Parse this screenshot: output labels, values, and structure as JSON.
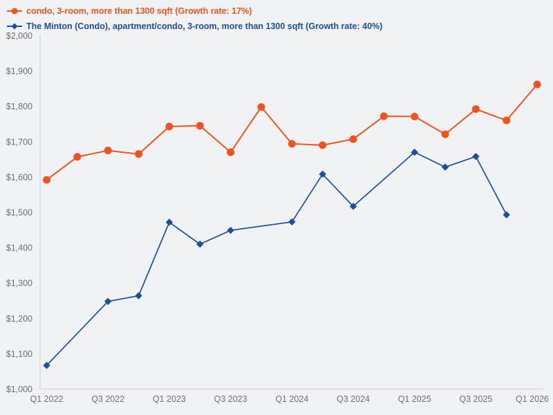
{
  "page": {
    "background_color": "#f1f2f4",
    "axis_color": "#ccd5e8",
    "tick_label_color": "#6f6f6f"
  },
  "chart_data": {
    "type": "line",
    "title": "",
    "xlabel": "",
    "ylabel": "",
    "x": [
      "Q1 2022",
      "Q2 2022",
      "Q3 2022",
      "Q4 2022",
      "Q1 2023",
      "Q2 2023",
      "Q3 2023",
      "Q4 2023",
      "Q1 2024",
      "Q2 2024",
      "Q3 2024",
      "Q4 2024",
      "Q1 2025",
      "Q2 2025",
      "Q3 2025",
      "Q4 2025",
      "Q1 2026"
    ],
    "x_tick_shown_every": 2,
    "x_tick_labels_shown": [
      "Q1 2022",
      "Q3 2022",
      "Q1 2023",
      "Q3 2023",
      "Q1 2024",
      "Q3 2024",
      "Q1 2025",
      "Q3 2025",
      "Q1 2026"
    ],
    "ylim": [
      1000,
      2000
    ],
    "y_ticks": [
      {
        "label": "$2,000",
        "value": 2000
      },
      {
        "label": "$1,900",
        "value": 1900
      },
      {
        "label": "$1,800",
        "value": 1800
      },
      {
        "label": "$1,700",
        "value": 1700
      },
      {
        "label": "$1,600",
        "value": 1600
      },
      {
        "label": "$1,500",
        "value": 1500
      },
      {
        "label": "$1,400",
        "value": 1400
      },
      {
        "label": "$1,300",
        "value": 1300
      },
      {
        "label": "$1,200",
        "value": 1200
      },
      {
        "label": "$1,100",
        "value": 1100
      },
      {
        "label": "$1,000",
        "value": 1000
      }
    ],
    "grid": false,
    "legend_position": "top-left",
    "series": [
      {
        "name": "condo, 3-room, more than 1300 sqft (Growth rate: 17%)",
        "color": "#f4511e",
        "marker": "circle",
        "values": [
          1592,
          1657,
          1675,
          1665,
          1743,
          1745,
          1670,
          1798,
          1694,
          1690,
          1707,
          1772,
          1771,
          1721,
          1792,
          1760,
          1862
        ]
      },
      {
        "name": "The Minton (Condo), apartment/condo, 3-room, more than 1300 sqft (Growth rate: 40%)",
        "color": "#1b4f9e",
        "marker": "diamond",
        "values": [
          1067,
          null,
          1248,
          1264,
          1472,
          1410,
          1449,
          null,
          1473,
          1608,
          1517,
          null,
          1670,
          1628,
          1658,
          1493,
          null
        ]
      }
    ]
  }
}
